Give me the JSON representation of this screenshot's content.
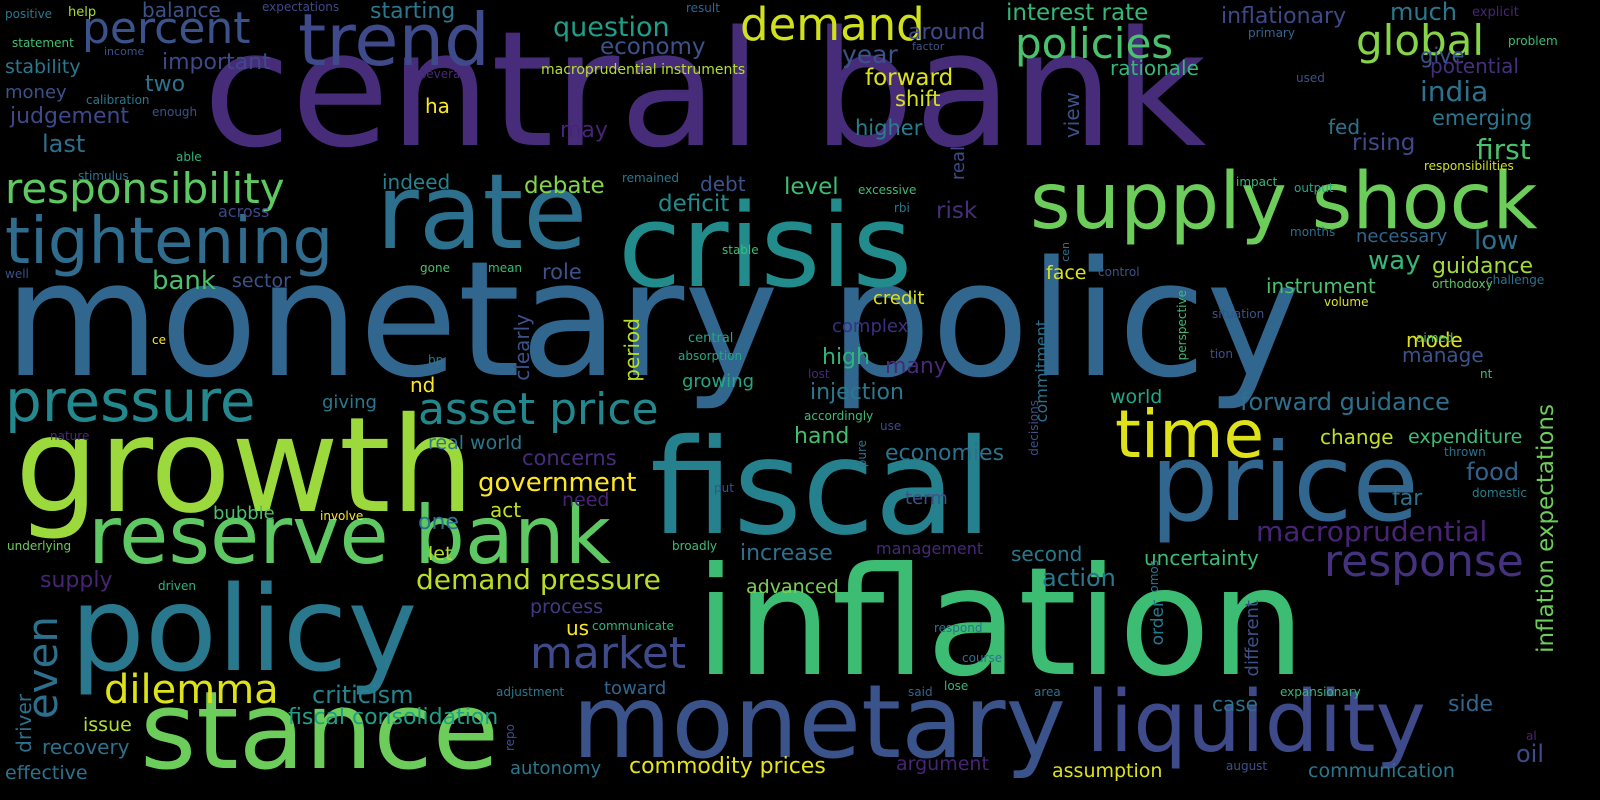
{
  "words": [
    {
      "text": "monetary policy",
      "color": "#31668e"
    },
    {
      "text": "central bank",
      "color": "#472c7a"
    },
    {
      "text": "inflation",
      "color": "#3dbc74"
    },
    {
      "text": "fiscal",
      "color": "#26818e"
    },
    {
      "text": "growth",
      "color": "#9bd93c"
    },
    {
      "text": "crisis",
      "color": "#228c8d"
    },
    {
      "text": "rate",
      "color": "#2d708e"
    },
    {
      "text": "policy",
      "color": "#2a788e"
    },
    {
      "text": "stance",
      "color": "#6ccd5a"
    },
    {
      "text": "price",
      "color": "#31668e"
    },
    {
      "text": "monetary",
      "color": "#3a538b"
    },
    {
      "text": "supply shock",
      "color": "#6ccd5a"
    },
    {
      "text": "reserve bank",
      "color": "#5ec962"
    },
    {
      "text": "liquidity",
      "color": "#3e4a89"
    },
    {
      "text": "tightening",
      "color": "#2f6c8e"
    },
    {
      "text": "trend",
      "color": "#3e4a89"
    },
    {
      "text": "pressure",
      "color": "#23898e"
    },
    {
      "text": "time",
      "color": "#dde318"
    },
    {
      "text": "demand",
      "color": "#d0e11c"
    },
    {
      "text": "responsibility",
      "color": "#5ec962"
    },
    {
      "text": "asset price",
      "color": "#23888e"
    },
    {
      "text": "percent",
      "color": "#3a538b"
    },
    {
      "text": "policies",
      "color": "#4ac16d"
    },
    {
      "text": "global",
      "color": "#86d549"
    },
    {
      "text": "response",
      "color": "#46317e"
    },
    {
      "text": "market",
      "color": "#3e4a89"
    },
    {
      "text": "dilemma",
      "color": "#dde318"
    },
    {
      "text": "even",
      "color": "#2d708e"
    },
    {
      "text": "demand pressure",
      "color": "#bade28"
    },
    {
      "text": "macroprudential",
      "color": "#482475"
    },
    {
      "text": "forward guidance",
      "color": "#2d708e"
    },
    {
      "text": "government",
      "color": "#fde725"
    },
    {
      "text": "criticism",
      "color": "#25858e"
    },
    {
      "text": "fiscal consolidation",
      "color": "#1f9e89"
    },
    {
      "text": "inflation expectations",
      "color": "#6ccd5a"
    },
    {
      "text": "commodity prices",
      "color": "#e5e419"
    },
    {
      "text": "question",
      "color": "#1f9e89"
    },
    {
      "text": "economy",
      "color": "#3b528b"
    },
    {
      "text": "interest rate",
      "color": "#35b779"
    },
    {
      "text": "inflationary",
      "color": "#3e4989"
    },
    {
      "text": "much",
      "color": "#2a788e"
    },
    {
      "text": "important",
      "color": "#3e4989"
    },
    {
      "text": "balance",
      "color": "#3b528b"
    },
    {
      "text": "starting",
      "color": "#2a788e"
    },
    {
      "text": "around",
      "color": "#3e4a89"
    },
    {
      "text": "year",
      "color": "#3b528b"
    },
    {
      "text": "forward",
      "color": "#dde318"
    },
    {
      "text": "shift",
      "color": "#d8e219"
    },
    {
      "text": "rationale",
      "color": "#35b779"
    },
    {
      "text": "give",
      "color": "#3b528b"
    },
    {
      "text": "india",
      "color": "#2c728e"
    },
    {
      "text": "potential",
      "color": "#46307e"
    },
    {
      "text": "emerging",
      "color": "#2a788e"
    },
    {
      "text": "first",
      "color": "#4ac16d"
    },
    {
      "text": "fed",
      "color": "#2c728e"
    },
    {
      "text": "rising",
      "color": "#3e4a89"
    },
    {
      "text": "higher",
      "color": "#277f8e"
    },
    {
      "text": "judgement",
      "color": "#3e4989"
    },
    {
      "text": "last",
      "color": "#2d708e"
    },
    {
      "text": "two",
      "color": "#2c728e"
    },
    {
      "text": "money",
      "color": "#3b528b"
    },
    {
      "text": "stability",
      "color": "#2a788e"
    },
    {
      "text": "macroprudential instruments",
      "color": "#b5de2b"
    },
    {
      "text": "debate",
      "color": "#86d549"
    },
    {
      "text": "debt",
      "color": "#3b528b"
    },
    {
      "text": "deficit",
      "color": "#228c8d"
    },
    {
      "text": "level",
      "color": "#3dbc74"
    },
    {
      "text": "risk",
      "color": "#472d7b"
    },
    {
      "text": "indeed",
      "color": "#26828e"
    },
    {
      "text": "may",
      "color": "#482475"
    },
    {
      "text": "ha",
      "color": "#fde725"
    },
    {
      "text": "bank",
      "color": "#4ac16d"
    },
    {
      "text": "sector",
      "color": "#3b528b"
    },
    {
      "text": "role",
      "color": "#3b528b"
    },
    {
      "text": "necessary",
      "color": "#31668e"
    },
    {
      "text": "low",
      "color": "#2c728e"
    },
    {
      "text": "way",
      "color": "#35b779"
    },
    {
      "text": "guidance",
      "color": "#a2da37"
    },
    {
      "text": "instrument",
      "color": "#4ac16d"
    },
    {
      "text": "face",
      "color": "#dde318"
    },
    {
      "text": "credit",
      "color": "#dde318"
    },
    {
      "text": "complex",
      "color": "#3b2f80"
    },
    {
      "text": "high",
      "color": "#2fb47c"
    },
    {
      "text": "many",
      "color": "#482878"
    },
    {
      "text": "injection",
      "color": "#2a788e"
    },
    {
      "text": "manage",
      "color": "#3b528b"
    },
    {
      "text": "mode",
      "color": "#dde318"
    },
    {
      "text": "period",
      "color": "#bade28"
    },
    {
      "text": "growing",
      "color": "#22a884"
    },
    {
      "text": "world",
      "color": "#22a884"
    },
    {
      "text": "hand",
      "color": "#44bf70"
    },
    {
      "text": "change",
      "color": "#c2df23"
    },
    {
      "text": "expenditure",
      "color": "#3dbc74"
    },
    {
      "text": "economies",
      "color": "#2c728e"
    },
    {
      "text": "food",
      "color": "#33638d"
    },
    {
      "text": "domestic",
      "color": "#277f8e"
    },
    {
      "text": "far",
      "color": "#2c728e"
    },
    {
      "text": "nd",
      "color": "#fde725"
    },
    {
      "text": "giving",
      "color": "#2a788e"
    },
    {
      "text": "real world",
      "color": "#2a788e"
    },
    {
      "text": "concerns",
      "color": "#472c7a"
    },
    {
      "text": "one",
      "color": "#2c728e"
    },
    {
      "text": "act",
      "color": "#c2df23"
    },
    {
      "text": "need",
      "color": "#482475"
    },
    {
      "text": "bubble",
      "color": "#4ac16d"
    },
    {
      "text": "let",
      "color": "#b5de2b"
    },
    {
      "text": "increase",
      "color": "#2d708e"
    },
    {
      "text": "term",
      "color": "#3b528b"
    },
    {
      "text": "management",
      "color": "#482878"
    },
    {
      "text": "second",
      "color": "#2a788e"
    },
    {
      "text": "uncertainty",
      "color": "#3dbc74"
    },
    {
      "text": "action",
      "color": "#2a788e"
    },
    {
      "text": "supply",
      "color": "#482475"
    },
    {
      "text": "advanced",
      "color": "#7ad151"
    },
    {
      "text": "process",
      "color": "#443983"
    },
    {
      "text": "us",
      "color": "#fde725"
    },
    {
      "text": "issue",
      "color": "#b5de2b"
    },
    {
      "text": "recovery",
      "color": "#2c728e"
    },
    {
      "text": "effective",
      "color": "#2c728e"
    },
    {
      "text": "autonomy",
      "color": "#2a788e"
    },
    {
      "text": "toward",
      "color": "#31668e"
    },
    {
      "text": "argument",
      "color": "#482475"
    },
    {
      "text": "assumption",
      "color": "#dde318"
    },
    {
      "text": "communication",
      "color": "#2a788e"
    },
    {
      "text": "side",
      "color": "#31668e"
    },
    {
      "text": "case",
      "color": "#2c728e"
    },
    {
      "text": "oil",
      "color": "#3e4a89"
    },
    {
      "text": "driver",
      "color": "#2c728e"
    },
    {
      "text": "clearly",
      "color": "#3b528b"
    },
    {
      "text": "commitment",
      "color": "#2d708e"
    },
    {
      "text": "order",
      "color": "#2a788e"
    },
    {
      "text": "different",
      "color": "#3b528b"
    },
    {
      "text": "view",
      "color": "#3b528b"
    },
    {
      "text": "real",
      "color": "#3e4a89"
    },
    {
      "text": "positive",
      "color": "#2a788e"
    },
    {
      "text": "help",
      "color": "#a8db34"
    },
    {
      "text": "expectations",
      "color": "#3e4989"
    },
    {
      "text": "result",
      "color": "#31668e"
    },
    {
      "text": "explicit",
      "color": "#482475"
    },
    {
      "text": "statement",
      "color": "#44bf70"
    },
    {
      "text": "income",
      "color": "#3b528b"
    },
    {
      "text": "primary",
      "color": "#31668e"
    },
    {
      "text": "problem",
      "color": "#3dbc74"
    },
    {
      "text": "factor",
      "color": "#3b528b"
    },
    {
      "text": "several",
      "color": "#482878"
    },
    {
      "text": "used",
      "color": "#3b528b"
    },
    {
      "text": "calibration",
      "color": "#2a788e"
    },
    {
      "text": "enough",
      "color": "#3b528b"
    },
    {
      "text": "able",
      "color": "#2fb47c"
    },
    {
      "text": "stimulus",
      "color": "#2d708e"
    },
    {
      "text": "across",
      "color": "#3e4989"
    },
    {
      "text": "remained",
      "color": "#2a788e"
    },
    {
      "text": "excessive",
      "color": "#3dbc74"
    },
    {
      "text": "impact",
      "color": "#35b779"
    },
    {
      "text": "output",
      "color": "#22a884"
    },
    {
      "text": "responsibilities",
      "color": "#d0e11c"
    },
    {
      "text": "rbi",
      "color": "#2a788e"
    },
    {
      "text": "stable",
      "color": "#3dbc74"
    },
    {
      "text": "months",
      "color": "#2d708e"
    },
    {
      "text": "well",
      "color": "#3b528b"
    },
    {
      "text": "gone",
      "color": "#4ac16d"
    },
    {
      "text": "mean",
      "color": "#3dbc74"
    },
    {
      "text": "control",
      "color": "#3b528b"
    },
    {
      "text": "orthodoxy",
      "color": "#5ec962"
    },
    {
      "text": "challenge",
      "color": "#2c728e"
    },
    {
      "text": "volume",
      "color": "#dde318"
    },
    {
      "text": "cen",
      "color": "#2c728e"
    },
    {
      "text": "situation",
      "color": "#3b528b"
    },
    {
      "text": "aimed",
      "color": "#4ac16d"
    },
    {
      "text": "tion",
      "color": "#3b528b"
    },
    {
      "text": "nt",
      "color": "#3dbc74"
    },
    {
      "text": "central",
      "color": "#22a884"
    },
    {
      "text": "absorption",
      "color": "#22a884"
    },
    {
      "text": "ce",
      "color": "#fde725"
    },
    {
      "text": "bp",
      "color": "#2a788e"
    },
    {
      "text": "lost",
      "color": "#482878"
    },
    {
      "text": "accordingly",
      "color": "#3dbc74"
    },
    {
      "text": "use",
      "color": "#3e4a89"
    },
    {
      "text": "perspective",
      "color": "#3dbc74"
    },
    {
      "text": "decisions",
      "color": "#3b528b"
    },
    {
      "text": "pure",
      "color": "#2c728e"
    },
    {
      "text": "thrown",
      "color": "#2c728e"
    },
    {
      "text": "nature",
      "color": "#472c7a"
    },
    {
      "text": "involve",
      "color": "#fde725"
    },
    {
      "text": "underlying",
      "color": "#6ccd5a"
    },
    {
      "text": "put",
      "color": "#3b528b"
    },
    {
      "text": "broadly",
      "color": "#3dbc74"
    },
    {
      "text": "driven",
      "color": "#2fb47c"
    },
    {
      "text": "communicate",
      "color": "#2fb47c"
    },
    {
      "text": "respond",
      "color": "#2c728e"
    },
    {
      "text": "omos",
      "color": "#2a788e"
    },
    {
      "text": "course",
      "color": "#2c728e"
    },
    {
      "text": "expansionary",
      "color": "#35b779"
    },
    {
      "text": "adjustment",
      "color": "#2a788e"
    },
    {
      "text": "said",
      "color": "#31668e"
    },
    {
      "text": "lose",
      "color": "#35b779"
    },
    {
      "text": "area",
      "color": "#2c728e"
    },
    {
      "text": "repo",
      "color": "#3b528b"
    },
    {
      "text": "august",
      "color": "#3b528b"
    },
    {
      "text": "al",
      "color": "#482475"
    }
  ]
}
